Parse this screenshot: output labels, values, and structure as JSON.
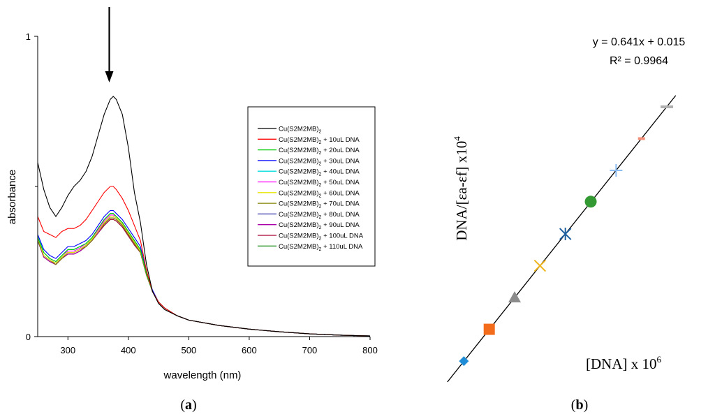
{
  "chart_data": [
    {
      "panel": "a",
      "type": "line",
      "title": "",
      "xlabel": "wavelength (nm)",
      "ylabel": "absorbance",
      "xlim": [
        250,
        800
      ],
      "ylim": [
        0,
        1
      ],
      "xticks": [
        "300",
        "400",
        "500",
        "600",
        "700",
        "800"
      ],
      "yticks": [
        "0",
        "1"
      ],
      "legend_position": "center-right",
      "panel_label": "(a)",
      "arrow_at_nm": 380,
      "legend_base": "Cu(S2M2MB)",
      "legend_sub": "2",
      "series": [
        {
          "name": "Cu(S2M2MB)2",
          "suffix": "",
          "color": "#000000",
          "x": [
            250,
            260,
            270,
            280,
            290,
            300,
            310,
            320,
            330,
            340,
            350,
            360,
            370,
            375,
            380,
            390,
            400,
            410,
            420,
            430,
            440,
            450,
            460,
            480,
            500,
            550,
            600,
            650,
            700,
            750,
            800
          ],
          "y": [
            0.58,
            0.49,
            0.43,
            0.4,
            0.43,
            0.47,
            0.5,
            0.52,
            0.55,
            0.6,
            0.67,
            0.74,
            0.79,
            0.8,
            0.79,
            0.74,
            0.63,
            0.48,
            0.38,
            0.24,
            0.15,
            0.11,
            0.09,
            0.07,
            0.055,
            0.037,
            0.025,
            0.016,
            0.009,
            0.005,
            0.002
          ]
        },
        {
          "name": "Cu(S2M2MB)2 + 10uL DNA",
          "suffix": " + 10uL DNA",
          "color": "#ff0000",
          "x": [
            250,
            260,
            270,
            280,
            290,
            300,
            310,
            320,
            330,
            340,
            350,
            360,
            370,
            375,
            380,
            390,
            400,
            410,
            420,
            430,
            440,
            450,
            460,
            480,
            500,
            550,
            600,
            650,
            700,
            750,
            800
          ],
          "y": [
            0.4,
            0.35,
            0.34,
            0.33,
            0.35,
            0.36,
            0.36,
            0.37,
            0.39,
            0.42,
            0.45,
            0.48,
            0.5,
            0.5,
            0.49,
            0.46,
            0.42,
            0.37,
            0.32,
            0.22,
            0.15,
            0.115,
            0.095,
            0.07,
            0.055,
            0.037,
            0.025,
            0.016,
            0.009,
            0.005,
            0.002
          ]
        },
        {
          "name": "Cu(S2M2MB)2 + 20uL DNA",
          "suffix": " + 20uL DNA",
          "color": "#00cc00",
          "x": [
            250,
            260,
            270,
            280,
            290,
            300,
            310,
            320,
            330,
            340,
            350,
            360,
            370,
            375,
            380,
            390,
            400,
            410,
            420,
            430,
            440,
            450,
            460,
            480,
            500,
            550,
            600,
            650,
            700,
            750,
            800
          ],
          "y": [
            0.33,
            0.28,
            0.26,
            0.25,
            0.27,
            0.29,
            0.29,
            0.3,
            0.31,
            0.33,
            0.36,
            0.39,
            0.41,
            0.41,
            0.4,
            0.38,
            0.35,
            0.32,
            0.29,
            0.21,
            0.15,
            0.115,
            0.095,
            0.07,
            0.055,
            0.037,
            0.025,
            0.016,
            0.009,
            0.005,
            0.002
          ]
        },
        {
          "name": "Cu(S2M2MB)2 + 30uL DNA",
          "suffix": " + 30uL DNA",
          "color": "#0000ff",
          "x": [
            250,
            260,
            270,
            280,
            290,
            300,
            310,
            320,
            330,
            340,
            350,
            360,
            370,
            375,
            380,
            390,
            400,
            410,
            420,
            430,
            440,
            450,
            460,
            480,
            500,
            550,
            600,
            650,
            700,
            750,
            800
          ],
          "y": [
            0.34,
            0.29,
            0.27,
            0.26,
            0.28,
            0.3,
            0.3,
            0.31,
            0.32,
            0.34,
            0.37,
            0.4,
            0.42,
            0.42,
            0.41,
            0.39,
            0.36,
            0.33,
            0.3,
            0.215,
            0.155,
            0.115,
            0.095,
            0.07,
            0.055,
            0.037,
            0.025,
            0.016,
            0.009,
            0.005,
            0.002
          ]
        },
        {
          "name": "Cu(S2M2MB)2 + 40uL DNA",
          "suffix": " + 40uL DNA",
          "color": "#00dddd",
          "x": [
            250,
            260,
            270,
            280,
            290,
            300,
            310,
            320,
            330,
            340,
            350,
            360,
            370,
            375,
            380,
            390,
            400,
            410,
            420,
            430,
            440,
            450,
            460,
            480,
            500,
            550,
            600,
            650,
            700,
            750,
            800
          ],
          "y": [
            0.34,
            0.28,
            0.26,
            0.25,
            0.27,
            0.29,
            0.29,
            0.3,
            0.31,
            0.33,
            0.36,
            0.39,
            0.41,
            0.41,
            0.4,
            0.38,
            0.35,
            0.32,
            0.29,
            0.21,
            0.15,
            0.115,
            0.095,
            0.07,
            0.055,
            0.037,
            0.025,
            0.016,
            0.009,
            0.005,
            0.002
          ]
        },
        {
          "name": "Cu(S2M2MB)2 + 50uL DNA",
          "suffix": " + 50uL DNA",
          "color": "#ff00ff",
          "x": [
            250,
            260,
            270,
            280,
            290,
            300,
            310,
            320,
            330,
            340,
            350,
            360,
            370,
            375,
            380,
            390,
            400,
            410,
            420,
            430,
            440,
            450,
            460,
            480,
            500,
            550,
            600,
            650,
            700,
            750,
            800
          ],
          "y": [
            0.33,
            0.28,
            0.26,
            0.25,
            0.27,
            0.285,
            0.285,
            0.295,
            0.31,
            0.33,
            0.355,
            0.385,
            0.405,
            0.405,
            0.4,
            0.38,
            0.35,
            0.32,
            0.29,
            0.21,
            0.15,
            0.115,
            0.095,
            0.07,
            0.055,
            0.037,
            0.025,
            0.016,
            0.009,
            0.005,
            0.002
          ]
        },
        {
          "name": "Cu(S2M2MB)2 + 60uL DNA",
          "suffix": " + 60uL DNA",
          "color": "#e6e600",
          "x": [
            250,
            260,
            270,
            280,
            290,
            300,
            310,
            320,
            330,
            340,
            350,
            360,
            370,
            375,
            380,
            390,
            400,
            410,
            420,
            430,
            440,
            450,
            460,
            480,
            500,
            550,
            600,
            650,
            700,
            750,
            800
          ],
          "y": [
            0.33,
            0.27,
            0.255,
            0.245,
            0.265,
            0.28,
            0.28,
            0.29,
            0.305,
            0.325,
            0.35,
            0.38,
            0.4,
            0.4,
            0.395,
            0.375,
            0.345,
            0.315,
            0.285,
            0.21,
            0.15,
            0.115,
            0.095,
            0.07,
            0.055,
            0.037,
            0.025,
            0.016,
            0.009,
            0.005,
            0.002
          ]
        },
        {
          "name": "Cu(S2M2MB)2 + 70uL DNA",
          "suffix": " + 70uL DNA",
          "color": "#808000",
          "x": [
            250,
            260,
            270,
            280,
            290,
            300,
            310,
            320,
            330,
            340,
            350,
            360,
            370,
            375,
            380,
            390,
            400,
            410,
            420,
            430,
            440,
            450,
            460,
            480,
            500,
            550,
            600,
            650,
            700,
            750,
            800
          ],
          "y": [
            0.32,
            0.27,
            0.255,
            0.24,
            0.26,
            0.28,
            0.28,
            0.29,
            0.3,
            0.32,
            0.35,
            0.375,
            0.395,
            0.395,
            0.39,
            0.37,
            0.34,
            0.31,
            0.28,
            0.205,
            0.15,
            0.115,
            0.095,
            0.07,
            0.055,
            0.037,
            0.025,
            0.016,
            0.009,
            0.005,
            0.002
          ]
        },
        {
          "name": "Cu(S2M2MB)2 + 80uL DNA",
          "suffix": " + 80uL DNA",
          "color": "#3333aa",
          "x": [
            250,
            260,
            270,
            280,
            290,
            300,
            310,
            320,
            330,
            340,
            350,
            360,
            370,
            375,
            380,
            390,
            400,
            410,
            420,
            430,
            440,
            450,
            460,
            480,
            500,
            550,
            600,
            650,
            700,
            750,
            800
          ],
          "y": [
            0.32,
            0.27,
            0.255,
            0.245,
            0.265,
            0.28,
            0.28,
            0.29,
            0.305,
            0.325,
            0.35,
            0.38,
            0.4,
            0.4,
            0.395,
            0.375,
            0.345,
            0.315,
            0.285,
            0.21,
            0.15,
            0.115,
            0.095,
            0.07,
            0.055,
            0.037,
            0.025,
            0.016,
            0.009,
            0.005,
            0.002
          ]
        },
        {
          "name": "Cu(S2M2MB)2 + 90uL DNA",
          "suffix": " + 90uL DNA",
          "color": "#aa00aa",
          "x": [
            250,
            260,
            270,
            280,
            290,
            300,
            310,
            320,
            330,
            340,
            350,
            360,
            370,
            375,
            380,
            390,
            400,
            410,
            420,
            430,
            440,
            450,
            460,
            480,
            500,
            550,
            600,
            650,
            700,
            750,
            800
          ],
          "y": [
            0.32,
            0.265,
            0.25,
            0.24,
            0.26,
            0.275,
            0.275,
            0.285,
            0.3,
            0.32,
            0.345,
            0.375,
            0.395,
            0.395,
            0.39,
            0.37,
            0.34,
            0.31,
            0.28,
            0.205,
            0.15,
            0.115,
            0.095,
            0.07,
            0.055,
            0.037,
            0.025,
            0.016,
            0.009,
            0.005,
            0.002
          ]
        },
        {
          "name": "Cu(S2M2MB)2 + 100uL DNA",
          "suffix": " + 100uL DNA",
          "color": "#aa0033",
          "x": [
            250,
            260,
            270,
            280,
            290,
            300,
            310,
            320,
            330,
            340,
            350,
            360,
            370,
            375,
            380,
            390,
            400,
            410,
            420,
            430,
            440,
            450,
            460,
            480,
            500,
            550,
            600,
            650,
            700,
            750,
            800
          ],
          "y": [
            0.32,
            0.265,
            0.25,
            0.24,
            0.26,
            0.275,
            0.275,
            0.285,
            0.3,
            0.32,
            0.345,
            0.37,
            0.39,
            0.39,
            0.385,
            0.365,
            0.335,
            0.305,
            0.28,
            0.205,
            0.15,
            0.115,
            0.095,
            0.07,
            0.055,
            0.037,
            0.025,
            0.016,
            0.009,
            0.005,
            0.002
          ]
        },
        {
          "name": "Cu(S2M2MB)2 + 110uL DNA",
          "suffix": " + 110uL DNA",
          "color": "#339933",
          "x": [
            250,
            260,
            270,
            280,
            290,
            300,
            310,
            320,
            330,
            340,
            350,
            360,
            370,
            375,
            380,
            390,
            400,
            410,
            420,
            430,
            440,
            450,
            460,
            480,
            500,
            550,
            600,
            650,
            700,
            750,
            800
          ],
          "y": [
            0.32,
            0.265,
            0.25,
            0.24,
            0.26,
            0.275,
            0.275,
            0.285,
            0.3,
            0.32,
            0.345,
            0.37,
            0.39,
            0.39,
            0.385,
            0.365,
            0.335,
            0.305,
            0.28,
            0.205,
            0.15,
            0.115,
            0.095,
            0.07,
            0.055,
            0.037,
            0.025,
            0.016,
            0.009,
            0.005,
            0.002
          ]
        }
      ]
    },
    {
      "panel": "b",
      "type": "scatter",
      "title": "",
      "xlabel_prefix": "[DNA] x 10",
      "xlabel_exp": "6",
      "ylabel_prefix": "DNA/[εa-εf] x10",
      "ylabel_exp": "4",
      "xlim": [
        0,
        11.2
      ],
      "ylim": [
        0,
        7.2
      ],
      "axes_visible": false,
      "panel_label": "(b)",
      "equation": "y = 0.641x + 0.015",
      "r2": "R² = 0.9964",
      "fit": {
        "slope": 0.641,
        "intercept": 0.015
      },
      "points": [
        {
          "x": 1,
          "y": 0.66,
          "marker": "diamond",
          "color": "#1f8dd6"
        },
        {
          "x": 2,
          "y": 1.3,
          "marker": "square",
          "color": "#f26c1c"
        },
        {
          "x": 3,
          "y": 1.94,
          "marker": "triangle",
          "color": "#8c8c8c"
        },
        {
          "x": 4,
          "y": 2.58,
          "marker": "cross-x",
          "color": "#f0b41e"
        },
        {
          "x": 5,
          "y": 3.22,
          "marker": "star",
          "color": "#1f5fa0"
        },
        {
          "x": 6,
          "y": 3.87,
          "marker": "circle",
          "color": "#339933"
        },
        {
          "x": 7,
          "y": 4.5,
          "marker": "plus",
          "color": "#8cbcf0"
        },
        {
          "x": 8,
          "y": 5.14,
          "marker": "dash",
          "color": "#f4907a"
        },
        {
          "x": 9,
          "y": 5.78,
          "marker": "dash",
          "color": "#b0b0b0"
        }
      ]
    }
  ]
}
